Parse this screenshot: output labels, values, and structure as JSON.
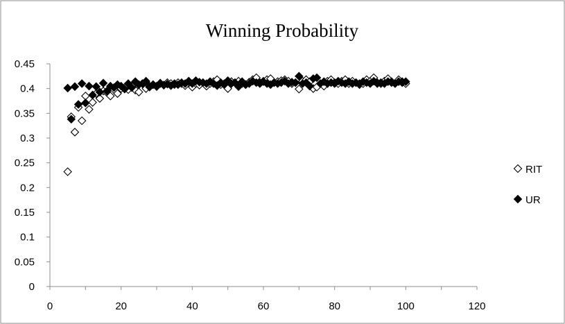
{
  "chart_data": {
    "type": "scatter",
    "title": "Winning Probability",
    "xlabel": "",
    "ylabel": "",
    "xlim": [
      0,
      120
    ],
    "ylim": [
      0,
      0.45
    ],
    "x_ticks": [
      "0",
      "20",
      "40",
      "60",
      "80",
      "100",
      "120"
    ],
    "y_ticks": [
      "0",
      "0.05",
      "0.1",
      "0.15",
      "0.2",
      "0.25",
      "0.3",
      "0.35",
      "0.4",
      "0.45"
    ],
    "grid": false,
    "legend_position": "right",
    "series": [
      {
        "name": "RIT",
        "marker": "diamond-open",
        "color": "#000000",
        "x": [
          5,
          6,
          7,
          8,
          9,
          10,
          11,
          12,
          13,
          14,
          15,
          16,
          17,
          18,
          19,
          20,
          21,
          22,
          23,
          24,
          25,
          26,
          27,
          28,
          29,
          30,
          31,
          32,
          33,
          34,
          35,
          36,
          37,
          38,
          39,
          40,
          41,
          42,
          43,
          44,
          45,
          46,
          47,
          48,
          49,
          50,
          51,
          52,
          53,
          54,
          55,
          56,
          57,
          58,
          59,
          60,
          61,
          62,
          63,
          64,
          65,
          66,
          67,
          68,
          69,
          70,
          71,
          72,
          73,
          74,
          75,
          76,
          77,
          78,
          79,
          80,
          81,
          82,
          83,
          84,
          85,
          86,
          87,
          88,
          89,
          90,
          91,
          92,
          93,
          94,
          95,
          96,
          97,
          98,
          99,
          100
        ],
        "y": [
          0.232,
          0.343,
          0.312,
          0.362,
          0.335,
          0.385,
          0.358,
          0.372,
          0.39,
          0.38,
          0.395,
          0.392,
          0.385,
          0.398,
          0.39,
          0.4,
          0.402,
          0.398,
          0.405,
          0.397,
          0.393,
          0.41,
          0.4,
          0.405,
          0.408,
          0.405,
          0.41,
          0.407,
          0.412,
          0.41,
          0.408,
          0.412,
          0.41,
          0.406,
          0.415,
          0.403,
          0.41,
          0.407,
          0.412,
          0.405,
          0.41,
          0.414,
          0.418,
          0.408,
          0.41,
          0.4,
          0.414,
          0.412,
          0.415,
          0.41,
          0.408,
          0.413,
          0.418,
          0.422,
          0.412,
          0.415,
          0.418,
          0.42,
          0.412,
          0.414,
          0.416,
          0.418,
          0.415,
          0.41,
          0.412,
          0.399,
          0.415,
          0.418,
          0.414,
          0.4,
          0.403,
          0.41,
          0.405,
          0.415,
          0.418,
          0.412,
          0.41,
          0.415,
          0.418,
          0.41,
          0.415,
          0.412,
          0.408,
          0.41,
          0.418,
          0.415,
          0.422,
          0.412,
          0.41,
          0.415,
          0.42,
          0.414,
          0.41,
          0.418,
          0.414,
          0.41
        ]
      },
      {
        "name": "UR",
        "marker": "diamond-filled",
        "color": "#000000",
        "x": [
          5,
          6,
          7,
          8,
          9,
          10,
          11,
          12,
          13,
          14,
          15,
          16,
          17,
          18,
          19,
          20,
          21,
          22,
          23,
          24,
          25,
          26,
          27,
          28,
          29,
          30,
          31,
          32,
          33,
          34,
          35,
          36,
          37,
          38,
          39,
          40,
          41,
          42,
          43,
          44,
          45,
          46,
          47,
          48,
          49,
          50,
          51,
          52,
          53,
          54,
          55,
          56,
          57,
          58,
          59,
          60,
          61,
          62,
          63,
          64,
          65,
          66,
          67,
          68,
          69,
          70,
          71,
          72,
          73,
          74,
          75,
          76,
          77,
          78,
          79,
          80,
          81,
          82,
          83,
          84,
          85,
          86,
          87,
          88,
          89,
          90,
          91,
          92,
          93,
          94,
          95,
          96,
          97,
          98,
          99,
          100
        ],
        "y": [
          0.401,
          0.338,
          0.404,
          0.368,
          0.41,
          0.371,
          0.405,
          0.387,
          0.404,
          0.393,
          0.411,
          0.395,
          0.405,
          0.402,
          0.408,
          0.405,
          0.399,
          0.41,
          0.402,
          0.414,
          0.408,
          0.41,
          0.415,
          0.403,
          0.408,
          0.404,
          0.411,
          0.407,
          0.409,
          0.406,
          0.41,
          0.408,
          0.412,
          0.41,
          0.415,
          0.41,
          0.416,
          0.413,
          0.412,
          0.41,
          0.414,
          0.41,
          0.406,
          0.412,
          0.408,
          0.416,
          0.41,
          0.412,
          0.404,
          0.414,
          0.408,
          0.41,
          0.415,
          0.412,
          0.41,
          0.414,
          0.41,
          0.408,
          0.412,
          0.41,
          0.412,
          0.415,
          0.41,
          0.413,
          0.412,
          0.425,
          0.41,
          0.412,
          0.405,
          0.42,
          0.422,
          0.41,
          0.414,
          0.41,
          0.412,
          0.41,
          0.415,
          0.412,
          0.41,
          0.414,
          0.41,
          0.412,
          0.41,
          0.414,
          0.412,
          0.41,
          0.415,
          0.41,
          0.412,
          0.41,
          0.414,
          0.412,
          0.41,
          0.414,
          0.412,
          0.414
        ]
      }
    ]
  }
}
